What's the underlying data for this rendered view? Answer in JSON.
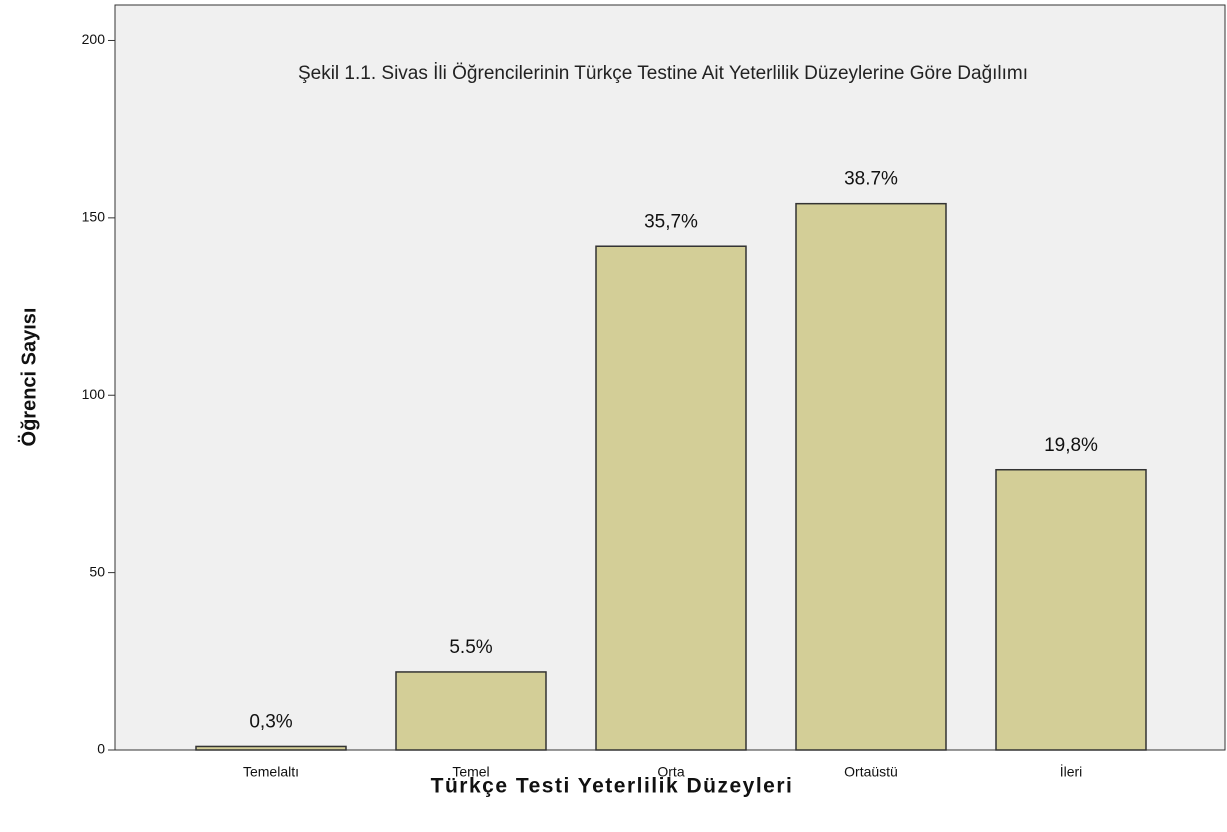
{
  "chart_data": {
    "type": "bar",
    "title": "Şekil 1.1. Sivas İli Öğrencilerinin Türkçe Testine Ait Yeterlilik Düzeylerine Göre Dağılımı",
    "x_label": "Türkçe Testi Yeterlilik Düzeyleri",
    "y_label": "Öğrenci Sayısı",
    "categories": [
      "Temelaltı",
      "Temel",
      "Orta",
      "Ortaüstü",
      "İleri"
    ],
    "values": [
      1,
      22,
      142,
      154,
      79
    ],
    "bar_labels": [
      "0,3%",
      "5.5%",
      "35,7%",
      "38.7%",
      "19,8%"
    ],
    "color": "#d3ce97",
    "ylim": [
      0,
      210
    ],
    "yticks": [
      0,
      50,
      100,
      150,
      200
    ],
    "grid": false
  }
}
